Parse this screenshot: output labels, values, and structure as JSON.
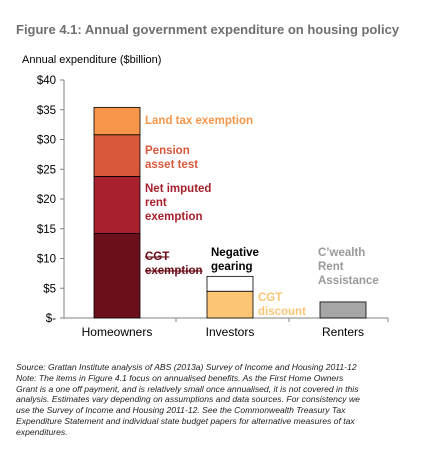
{
  "figure_title": "Figure 4.1: Annual government expenditure on housing policy",
  "chart_data": {
    "type": "bar",
    "stacked": true,
    "ylabel": "Annual expenditure ($billion)",
    "ylim": [
      0,
      40
    ],
    "yticks": [
      0,
      5,
      10,
      15,
      20,
      25,
      30,
      35,
      40
    ],
    "ytick_labels": [
      "$-",
      "$5",
      "$10",
      "$15",
      "$20",
      "$25",
      "$30",
      "$35",
      "$40"
    ],
    "grid": false,
    "categories": [
      "Homeowners",
      "Investors",
      "Renters"
    ],
    "segments": [
      {
        "label": "CGT exemption",
        "category": "Homeowners",
        "base": 0,
        "value": 14.2,
        "color": "#6b0f1a",
        "label_color": "#6b0f1a",
        "strike": true
      },
      {
        "label": "Net imputed rent exemption",
        "category": "Homeowners",
        "base": 14.2,
        "value": 9.6,
        "color": "#a8202e",
        "label_color": "#a8202e"
      },
      {
        "label": "Pension asset test",
        "category": "Homeowners",
        "base": 23.8,
        "value": 7.0,
        "color": "#d9573a",
        "label_color": "#d9573a"
      },
      {
        "label": "Land tax exemption",
        "category": "Homeowners",
        "base": 30.8,
        "value": 4.6,
        "color": "#f7964a",
        "label_color": "#f7964a"
      },
      {
        "label": "CGT discount",
        "category": "Investors",
        "base": 0,
        "value": 4.5,
        "color": "#fcc574",
        "label_color": "#fcc574"
      },
      {
        "label": "Negative gearing",
        "category": "Investors",
        "base": 4.5,
        "value": 2.5,
        "color": "#ffffff",
        "label_color": "#000000"
      },
      {
        "label": "C'wealth Rent Assistance",
        "category": "Renters",
        "base": 0,
        "value": 2.7,
        "color": "#a6a6a6",
        "label_color": "#9a9a9a"
      }
    ]
  },
  "source_lines": [
    "Source: Grattan Institute analysis of ABS (2013a) Survey of Income and Housing 2011-12",
    "Note: The items in Figure 4.1 focus on annualised benefits. As the First Home Owners",
    "Grant is a one off payment, and is relatively small once annualised, it is not covered in this",
    "analysis. Estimates vary depending on assumptions and data sources. For consistency we",
    "use the Survey of Income and Housing 2011-12. See the Commonwealth Treasury Tax",
    "Expenditure Statement and individual state budget papers for alternative measures of tax",
    "expenditures."
  ]
}
